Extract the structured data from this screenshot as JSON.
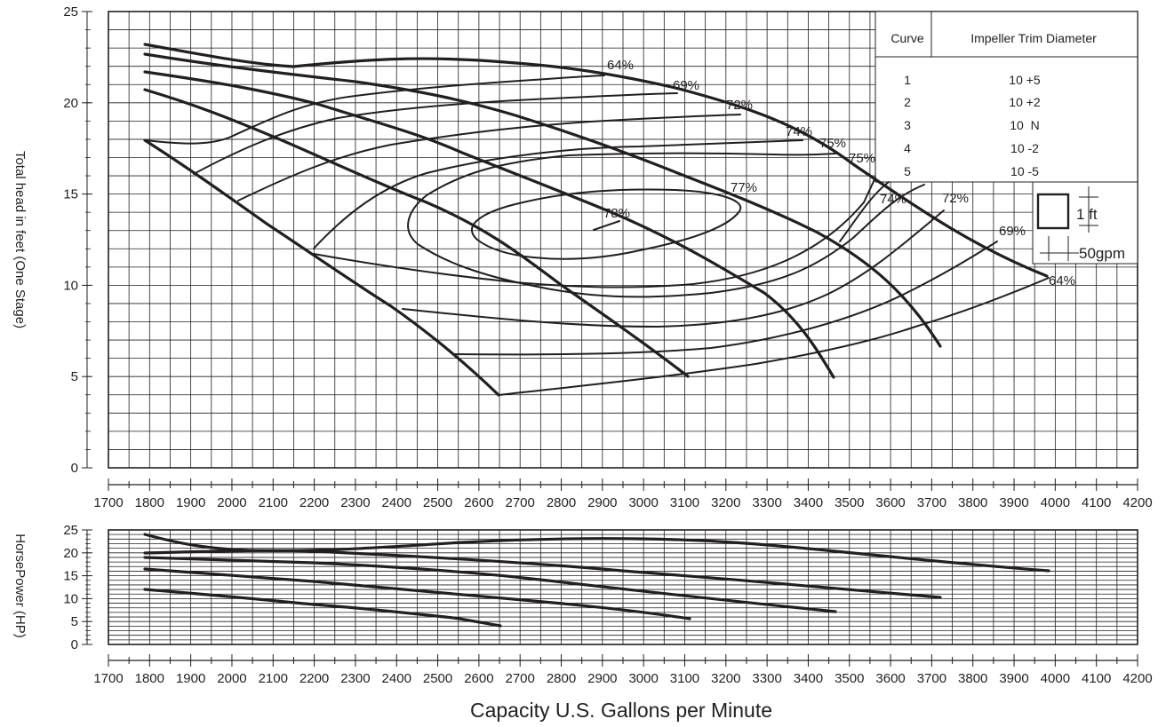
{
  "chart_data": [
    {
      "type": "line",
      "name": "head",
      "ylabel": "Total head in feet (One Stage)",
      "xlim": [
        1700,
        4200
      ],
      "ylim": [
        0,
        25
      ],
      "x_ticks": [
        "1700",
        "1800",
        "1900",
        "2000",
        "2100",
        "2200",
        "2300",
        "2400",
        "2500",
        "2600",
        "2700",
        "2800",
        "2900",
        "3000",
        "3100",
        "3200",
        "3300",
        "3400",
        "3500",
        "3600",
        "3700",
        "3800",
        "3900",
        "4000",
        "4100",
        "4200"
      ],
      "y_ticks": [
        "0",
        "5",
        "10",
        "15",
        "20",
        "25"
      ],
      "grid": true,
      "series": [
        {
          "name": "1",
          "points": [
            [
              1800,
              23.2
            ],
            [
              2000,
              22.4
            ],
            [
              2300,
              21.3
            ],
            [
              2600,
              20.2
            ],
            [
              2900,
              21.5
            ],
            [
              3100,
              20.4
            ],
            [
              3400,
              17.9
            ],
            [
              3600,
              15.2
            ],
            [
              3800,
              12.7
            ],
            [
              3970,
              10.5
            ]
          ]
        },
        {
          "name": "2",
          "points": [
            [
              1800,
              22.6
            ],
            [
              2000,
              21.9
            ],
            [
              2200,
              21.4
            ],
            [
              2500,
              20.3
            ],
            [
              2800,
              18.6
            ],
            [
              3100,
              16.8
            ],
            [
              3300,
              15.0
            ],
            [
              3500,
              12.7
            ],
            [
              3730,
              9.2
            ],
            [
              3730,
              6.6
            ]
          ]
        },
        {
          "name": "3",
          "points": [
            [
              1800,
              21.7
            ],
            [
              2000,
              21.0
            ],
            [
              2300,
              19.8
            ],
            [
              2600,
              17.9
            ],
            [
              2900,
              15.8
            ],
            [
              3200,
              13.5
            ],
            [
              3300,
              12.2
            ],
            [
              3450,
              4.9
            ]
          ]
        },
        {
          "name": "4",
          "points": [
            [
              1800,
              20.7
            ],
            [
              2000,
              19.5
            ],
            [
              2200,
              17.7
            ],
            [
              2400,
              15.5
            ],
            [
              2600,
              13.1
            ],
            [
              2800,
              10.6
            ],
            [
              3100,
              5.0
            ]
          ]
        },
        {
          "name": "5",
          "points": [
            [
              1800,
              18.0
            ],
            [
              2000,
              15.3
            ],
            [
              2200,
              12.5
            ],
            [
              2400,
              9.2
            ],
            [
              2650,
              4.0
            ]
          ]
        }
      ],
      "efficiency_labels": [
        "64%",
        "69%",
        "72%",
        "74%",
        "75%",
        "75%",
        "77%",
        "78%",
        "74%",
        "72%",
        "69%",
        "64%"
      ]
    },
    {
      "type": "line",
      "name": "horsepower",
      "ylabel": "HorsePower (HP)",
      "xlabel": "Capacity U.S. Gallons per Minute",
      "xlim": [
        1700,
        4200
      ],
      "ylim": [
        0,
        25
      ],
      "x_ticks": [
        "1700",
        "1800",
        "1900",
        "2000",
        "2100",
        "2200",
        "2300",
        "2400",
        "2500",
        "2600",
        "2700",
        "2800",
        "2900",
        "3000",
        "3100",
        "3200",
        "3300",
        "3400",
        "3500",
        "3600",
        "3700",
        "3800",
        "3900",
        "4000",
        "4100",
        "4200"
      ],
      "y_ticks": [
        "0",
        "5",
        "10",
        "15",
        "20",
        "25"
      ],
      "grid": true,
      "series": [
        {
          "name": "1",
          "points": [
            [
              1800,
              24.0
            ],
            [
              2000,
              21.2
            ],
            [
              2200,
              20.5
            ],
            [
              2400,
              21.3
            ],
            [
              2600,
              22.6
            ],
            [
              2800,
              23.0
            ],
            [
              3000,
              22.9
            ],
            [
              3200,
              22.0
            ],
            [
              3500,
              20.0
            ],
            [
              3800,
              17.9
            ],
            [
              3970,
              16.3
            ]
          ]
        },
        {
          "name": "2",
          "points": [
            [
              1800,
              20.0
            ],
            [
              2200,
              20.4
            ],
            [
              2600,
              18.9
            ],
            [
              3100,
              15.8
            ],
            [
              3730,
              10.0
            ]
          ]
        },
        {
          "name": "3",
          "points": [
            [
              1800,
              19.0
            ],
            [
              2200,
              18.0
            ],
            [
              2600,
              16.0
            ],
            [
              3100,
              12.3
            ],
            [
              3450,
              7.0
            ]
          ]
        },
        {
          "name": "4",
          "points": [
            [
              1800,
              16.5
            ],
            [
              2200,
              14.7
            ],
            [
              2600,
              12.0
            ],
            [
              3110,
              5.6
            ]
          ]
        },
        {
          "name": "5",
          "points": [
            [
              1800,
              12.0
            ],
            [
              2200,
              9.5
            ],
            [
              2400,
              7.9
            ],
            [
              2650,
              4.0
            ]
          ]
        }
      ]
    }
  ],
  "legend_table": {
    "col_curve": "Curve",
    "col_trim": "Impeller Trim Diameter",
    "rows": [
      {
        "curve": "1",
        "trim": "10 +5"
      },
      {
        "curve": "2",
        "trim": "10 +2"
      },
      {
        "curve": "3",
        "trim": "10  N"
      },
      {
        "curve": "4",
        "trim": "10 -2"
      },
      {
        "curve": "5",
        "trim": "10 -5"
      }
    ]
  },
  "scale_key": {
    "height_label": "1 ft",
    "flow_label": "50gpm"
  }
}
